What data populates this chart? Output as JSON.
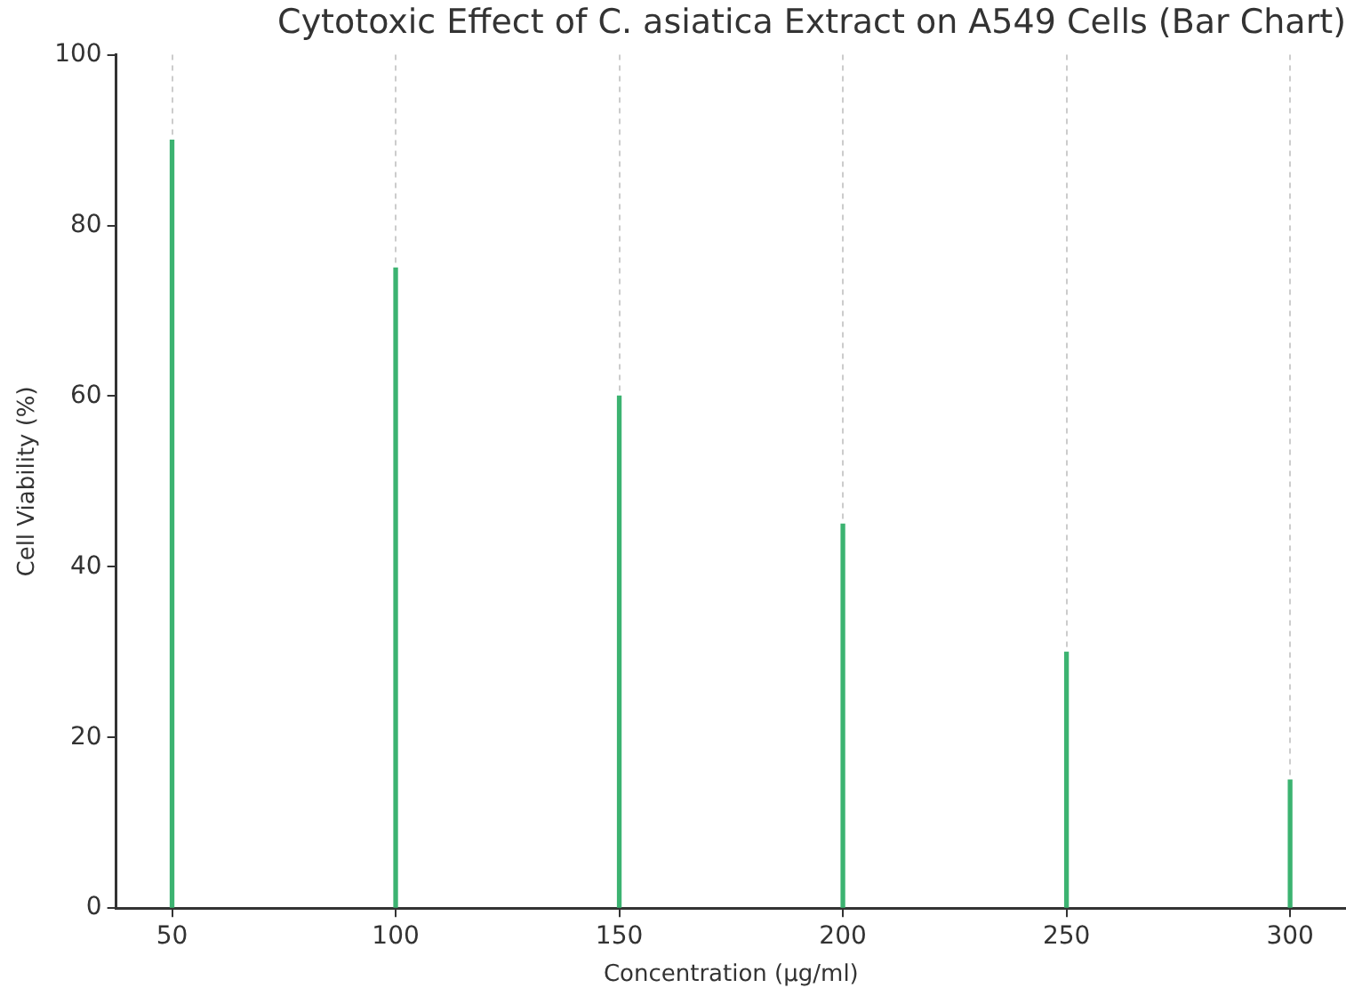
{
  "chart_data": {
    "type": "bar",
    "title": "Cytotoxic Effect of C. asiatica Extract on A549 Cells (Bar Chart)",
    "xlabel": "Concentration (µg/ml)",
    "ylabel": "Cell Viability (%)",
    "x": [
      50,
      100,
      150,
      200,
      250,
      300
    ],
    "values": [
      90,
      75,
      60,
      45,
      30,
      15
    ],
    "color": "#3cb371",
    "xlim": [
      37.5,
      312.5
    ],
    "xticks": [
      50,
      100,
      150,
      200,
      250,
      300
    ],
    "ylim": [
      0,
      100
    ],
    "yticks": [
      0,
      20,
      40,
      60,
      80,
      100
    ],
    "grid": "x"
  }
}
